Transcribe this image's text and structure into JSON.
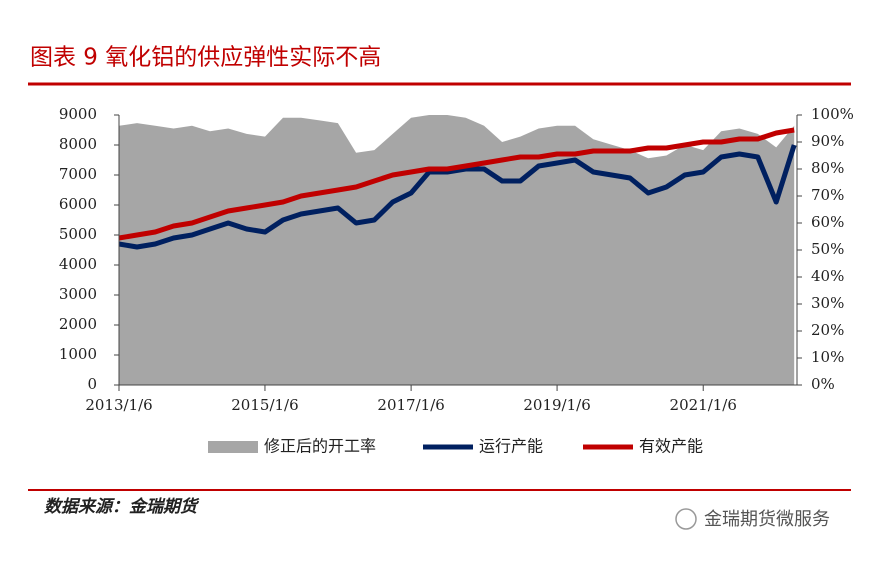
{
  "chart_data": {
    "type": "line",
    "title": "图表 9 氧化铝的供应弹性实际不高",
    "x": [
      "2013/1/6",
      "2013/4/6",
      "2013/7/6",
      "2013/10/6",
      "2014/1/6",
      "2014/4/6",
      "2014/7/6",
      "2014/10/6",
      "2015/1/6",
      "2015/4/6",
      "2015/7/6",
      "2015/10/6",
      "2016/1/6",
      "2016/4/6",
      "2016/7/6",
      "2016/10/6",
      "2017/1/6",
      "2017/4/6",
      "2017/7/6",
      "2017/10/6",
      "2018/1/6",
      "2018/4/6",
      "2018/7/6",
      "2018/10/6",
      "2019/1/6",
      "2019/4/6",
      "2019/7/6",
      "2019/10/6",
      "2020/1/6",
      "2020/4/6",
      "2020/7/6",
      "2020/10/6",
      "2021/1/6",
      "2021/4/6",
      "2021/7/6",
      "2021/10/6",
      "2022/1/6",
      "2022/4/6"
    ],
    "series": [
      {
        "name": "修正后的开工率",
        "color": "#a6a6a6",
        "axis": "y2",
        "style": "area",
        "values": [
          96,
          97,
          96,
          95,
          96,
          94,
          95,
          93,
          92,
          99,
          99,
          98,
          97,
          86,
          87,
          93,
          99,
          100,
          100,
          99,
          96,
          90,
          92,
          95,
          96,
          96,
          91,
          89,
          87,
          84,
          85,
          89,
          87,
          94,
          95,
          93,
          88,
          96
        ]
      },
      {
        "name": "运行产能",
        "color": "#002060",
        "values": [
          4700,
          4600,
          4700,
          4900,
          5000,
          5200,
          5400,
          5200,
          5100,
          5500,
          5700,
          5800,
          5900,
          5400,
          5500,
          6100,
          6400,
          7100,
          7100,
          7200,
          7200,
          6800,
          6800,
          7300,
          7400,
          7500,
          7100,
          7000,
          6900,
          6400,
          6600,
          7000,
          7100,
          7600,
          7700,
          7600,
          6100,
          8000
        ]
      },
      {
        "name": "有效产能",
        "color": "#c00000",
        "values": [
          4900,
          5000,
          5100,
          5300,
          5400,
          5600,
          5800,
          5900,
          6000,
          6100,
          6300,
          6400,
          6500,
          6600,
          6800,
          7000,
          7100,
          7200,
          7200,
          7300,
          7400,
          7500,
          7600,
          7600,
          7700,
          7700,
          7800,
          7800,
          7800,
          7900,
          7900,
          8000,
          8100,
          8100,
          8200,
          8200,
          8400,
          8500
        ]
      }
    ],
    "xlim": [
      "2013/1/6",
      "2022/4/20"
    ],
    "xticks": [
      "2013/1/6",
      "2015/1/6",
      "2017/1/6",
      "2019/1/6",
      "2021/1/6"
    ],
    "ylim": [
      0,
      9000
    ],
    "yticks": [
      0,
      1000,
      2000,
      3000,
      4000,
      5000,
      6000,
      7000,
      8000,
      9000
    ],
    "y2lim": [
      0,
      100
    ],
    "y2ticks": [
      {
        "value": 0,
        "label": "0%"
      },
      {
        "value": 10,
        "label": "10%"
      },
      {
        "value": 20,
        "label": "20%"
      },
      {
        "value": 30,
        "label": "30%"
      },
      {
        "value": 40,
        "label": "40%"
      },
      {
        "value": 50,
        "label": "50%"
      },
      {
        "value": 60,
        "label": "60%"
      },
      {
        "value": 70,
        "label": "70%"
      },
      {
        "value": 80,
        "label": "80%"
      },
      {
        "value": 90,
        "label": "90%"
      },
      {
        "value": 100,
        "label": "100%"
      }
    ],
    "legend": "bottom"
  },
  "source": "数据来源：金瑞期货",
  "watermark": "金瑞期货微服务"
}
